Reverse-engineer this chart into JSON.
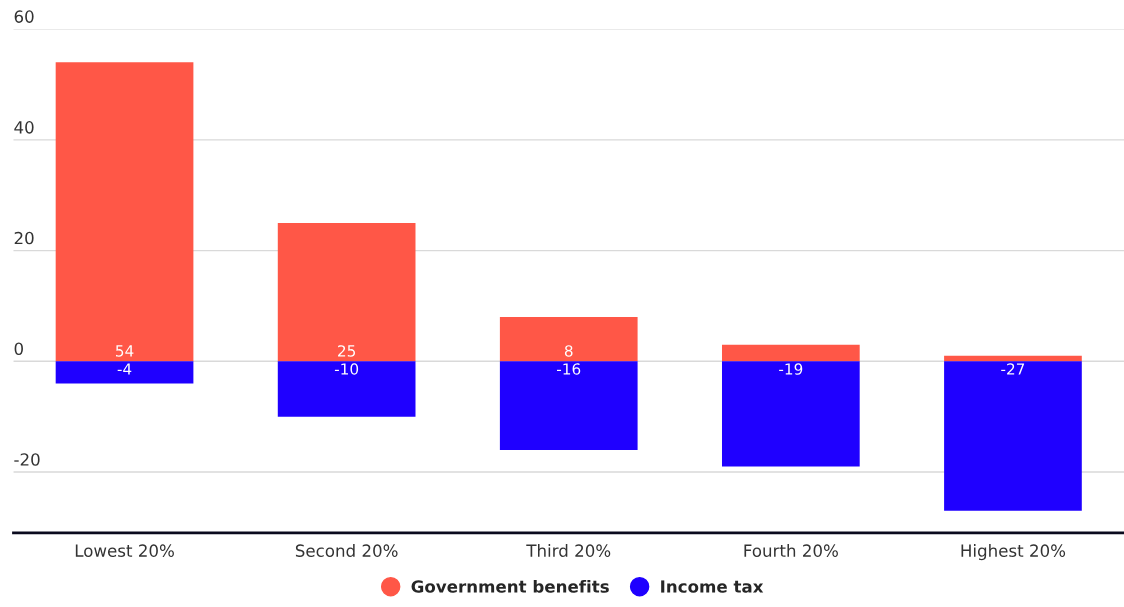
{
  "chart_data": {
    "type": "bar",
    "stacked": true,
    "categories": [
      "Lowest 20%",
      "Second 20%",
      "Third 20%",
      "Fourth 20%",
      "Highest 20%"
    ],
    "series": [
      {
        "name": "Government benefits",
        "color": "#ff5747",
        "values": [
          54,
          25,
          8,
          3,
          1
        ],
        "value_labels": [
          "54",
          "25",
          "8",
          null,
          null
        ]
      },
      {
        "name": "Income tax",
        "color": "#1f00ff",
        "values": [
          -4,
          -10,
          -16,
          -19,
          -27
        ],
        "value_labels": [
          "-4",
          "-10",
          "-16",
          "-19",
          "-27"
        ]
      }
    ],
    "ylim": [
      -31,
      60
    ],
    "yticks": [
      -20,
      0,
      20,
      40,
      60
    ],
    "grid": "y",
    "legend": "bottom"
  }
}
